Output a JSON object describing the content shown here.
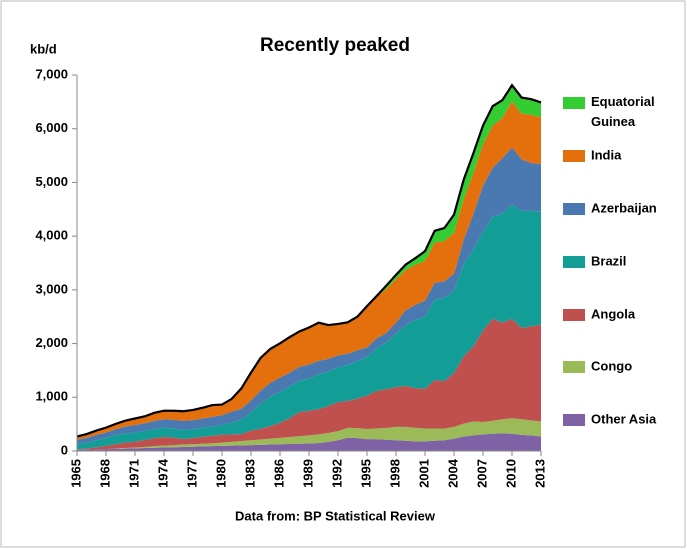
{
  "chart_data": {
    "type": "stacked_area",
    "title": "Recently peaked",
    "y_label": "kb/d",
    "footer": "Data from: BP Statistical Review",
    "x": [
      1965,
      1966,
      1967,
      1968,
      1969,
      1970,
      1971,
      1972,
      1973,
      1974,
      1975,
      1976,
      1977,
      1978,
      1979,
      1980,
      1981,
      1982,
      1983,
      1984,
      1985,
      1986,
      1987,
      1988,
      1989,
      1990,
      1991,
      1992,
      1993,
      1994,
      1995,
      1996,
      1997,
      1998,
      1999,
      2000,
      2001,
      2002,
      2003,
      2004,
      2005,
      2006,
      2007,
      2008,
      2009,
      2010,
      2011,
      2012,
      2013
    ],
    "xlim": [
      1965,
      2013
    ],
    "xticks": [
      1965,
      1968,
      1971,
      1974,
      1977,
      1980,
      1983,
      1986,
      1989,
      1992,
      1995,
      1998,
      2001,
      2004,
      2007,
      2010,
      2013
    ],
    "ylim": [
      0,
      7000
    ],
    "yticks": [
      0,
      {
        "value": 1000,
        "label": "1,000"
      },
      {
        "value": 2000,
        "label": "2,000"
      },
      {
        "value": 3000,
        "label": "3,000"
      },
      {
        "value": 4000,
        "label": "4,000"
      },
      {
        "value": 5000,
        "label": "5,000"
      },
      {
        "value": 6000,
        "label": "6,000"
      },
      {
        "value": 7000,
        "label": "7,000"
      }
    ],
    "grid": false,
    "legend": "right",
    "series": [
      {
        "name": "Other Asia",
        "color": "#7f62a6",
        "values": [
          20,
          25,
          30,
          35,
          40,
          45,
          50,
          55,
          60,
          65,
          70,
          75,
          80,
          85,
          90,
          95,
          100,
          105,
          110,
          115,
          120,
          125,
          130,
          135,
          140,
          150,
          170,
          200,
          250,
          240,
          220,
          220,
          210,
          200,
          190,
          180,
          180,
          190,
          200,
          230,
          270,
          290,
          310,
          320,
          330,
          320,
          300,
          290,
          270
        ]
      },
      {
        "name": "Congo",
        "color": "#9bbb59",
        "values": [
          0,
          0,
          0,
          0,
          5,
          10,
          15,
          20,
          30,
          35,
          40,
          45,
          45,
          50,
          55,
          60,
          70,
          80,
          90,
          100,
          110,
          120,
          130,
          140,
          150,
          160,
          165,
          170,
          180,
          185,
          190,
          200,
          220,
          250,
          260,
          250,
          240,
          230,
          220,
          220,
          240,
          260,
          230,
          240,
          260,
          290,
          290,
          280,
          280
        ]
      },
      {
        "name": "Angola",
        "color": "#c0504d",
        "values": [
          10,
          20,
          40,
          60,
          80,
          100,
          110,
          130,
          150,
          160,
          140,
          100,
          120,
          130,
          140,
          150,
          140,
          130,
          180,
          200,
          230,
          280,
          350,
          450,
          460,
          470,
          500,
          540,
          500,
          550,
          620,
          700,
          720,
          740,
          760,
          740,
          740,
          900,
          880,
          1000,
          1250,
          1400,
          1700,
          1900,
          1800,
          1850,
          1700,
          1750,
          1800
        ]
      },
      {
        "name": "Brazil",
        "color": "#139d97",
        "values": [
          100,
          110,
          130,
          150,
          170,
          170,
          170,
          170,
          170,
          180,
          170,
          170,
          160,
          170,
          170,
          180,
          220,
          270,
          340,
          470,
          550,
          580,
          590,
          580,
          600,
          650,
          640,
          650,
          670,
          700,
          720,
          800,
          870,
          1000,
          1130,
          1270,
          1340,
          1500,
          1550,
          1540,
          1720,
          1810,
          1830,
          1900,
          2030,
          2130,
          2180,
          2150,
          2110
        ]
      },
      {
        "name": "Azerbaijan",
        "color": "#4a78b0",
        "values": [
          80,
          90,
          100,
          100,
          110,
          130,
          140,
          140,
          150,
          150,
          160,
          170,
          170,
          170,
          180,
          180,
          200,
          200,
          220,
          240,
          260,
          260,
          260,
          260,
          260,
          250,
          240,
          220,
          210,
          200,
          180,
          180,
          180,
          200,
          280,
          280,
          300,
          310,
          310,
          310,
          450,
          650,
          870,
          910,
          1030,
          1060,
          960,
          890,
          880
        ]
      },
      {
        "name": "India",
        "color": "#e4700d",
        "values": [
          60,
          70,
          80,
          90,
          100,
          110,
          120,
          130,
          150,
          160,
          170,
          180,
          190,
          200,
          220,
          200,
          240,
          380,
          520,
          610,
          630,
          640,
          660,
          660,
          690,
          710,
          630,
          580,
          580,
          620,
          760,
          770,
          820,
          810,
          750,
          750,
          740,
          750,
          750,
          760,
          760,
          760,
          770,
          790,
          750,
          860,
          850,
          900,
          870
        ]
      },
      {
        "name": "Equatorial Guinea",
        "color": "#33cc33",
        "values": [
          0,
          0,
          0,
          0,
          0,
          0,
          0,
          0,
          0,
          0,
          0,
          0,
          0,
          0,
          0,
          0,
          0,
          0,
          0,
          0,
          0,
          0,
          0,
          0,
          0,
          0,
          0,
          5,
          5,
          5,
          7,
          15,
          60,
          80,
          100,
          120,
          180,
          220,
          240,
          340,
          360,
          370,
          350,
          360,
          330,
          300,
          300,
          290,
          280
        ]
      }
    ]
  }
}
